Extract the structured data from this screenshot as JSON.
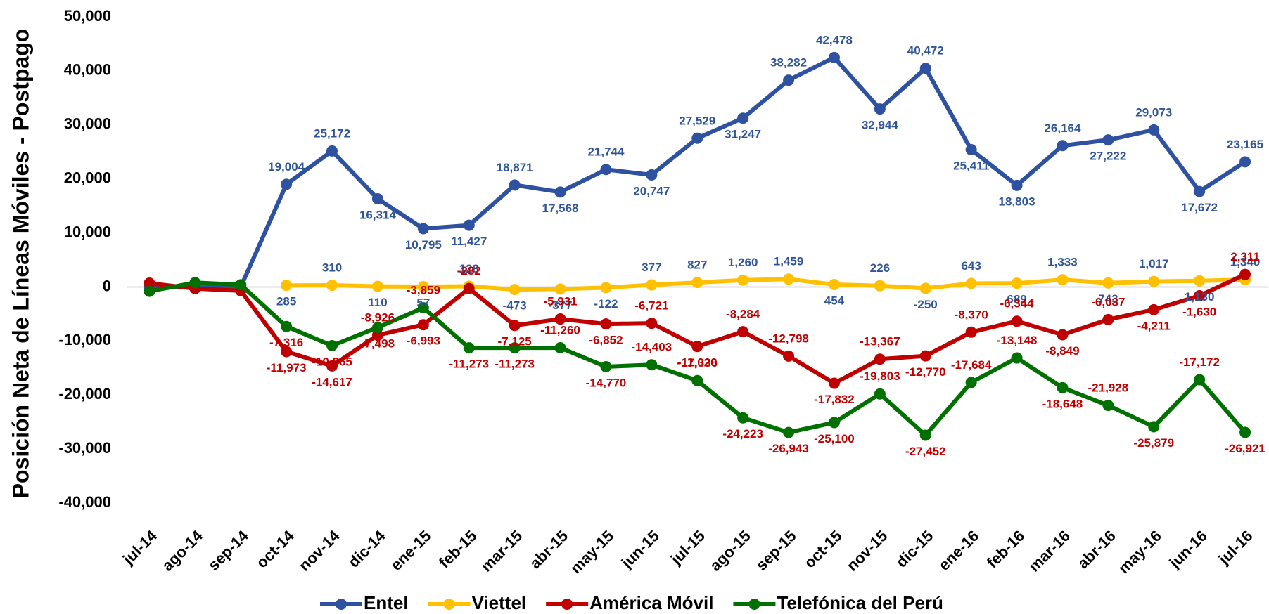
{
  "chart_data": {
    "type": "line",
    "y_label": "Posición Neta de Líneas Móviles - Postpago",
    "categories": [
      "jul-14",
      "ago-14",
      "sep-14",
      "oct-14",
      "nov-14",
      "dic-14",
      "ene-15",
      "feb-15",
      "mar-15",
      "abr-15",
      "may-15",
      "jun-15",
      "jul-15",
      "ago-15",
      "sep-15",
      "oct-15",
      "nov-15",
      "dic-15",
      "ene-16",
      "feb-16",
      "mar-16",
      "abr-16",
      "may-16",
      "jun-16",
      "jul-16"
    ],
    "ylim": [
      -40000,
      50000
    ],
    "yticks": [
      {
        "value": -40000,
        "label": "-40,000"
      },
      {
        "value": -30000,
        "label": "-30,000"
      },
      {
        "value": -20000,
        "label": "-20,000"
      },
      {
        "value": -10000,
        "label": "-10,000"
      },
      0,
      {
        "value": 10000,
        "label": "10,000"
      },
      {
        "value": 20000,
        "label": "20,000"
      },
      {
        "value": 30000,
        "label": "30,000"
      },
      {
        "value": 40000,
        "label": "40,000"
      },
      {
        "value": 50000,
        "label": "50,000"
      }
    ],
    "series": [
      {
        "name": "Entel",
        "color": "#2f52a0",
        "label_color": "#2f5597",
        "values": [
          0,
          0,
          0,
          19004,
          25172,
          16314,
          10795,
          11427,
          18871,
          17568,
          21744,
          20747,
          27529,
          31247,
          38282,
          42478,
          32944,
          40472,
          25411,
          18803,
          26164,
          27222,
          29073,
          17672,
          23165
        ],
        "value_labels": [
          null,
          null,
          null,
          "19,004",
          "25,172",
          "16,314",
          "10,795",
          "11,427",
          "18,871",
          "17,568",
          "21,744",
          "20,747",
          "27,529",
          "31,247",
          "38,282",
          "42,478",
          "32,944",
          "40,472",
          "25,411",
          "18,803",
          "26,164",
          "27,222",
          "29,073",
          "17,672",
          "23,165"
        ]
      },
      {
        "name": "Viettel",
        "color": "#ffc000",
        "label_color": "#2f5597",
        "values": [
          null,
          null,
          null,
          285,
          310,
          110,
          57,
          128,
          -473,
          -377,
          -122,
          377,
          827,
          1260,
          1459,
          454,
          226,
          -250,
          643,
          689,
          1333,
          743,
          1017,
          1130,
          1340
        ],
        "value_labels": [
          null,
          null,
          null,
          "285",
          "310",
          "110",
          "57",
          "128",
          "-473",
          "-377",
          "-122",
          "377",
          "827",
          "1,260",
          "1,459",
          "454",
          "226",
          "-250",
          "643",
          "689",
          "1,333",
          "743",
          "1,017",
          "1,130",
          "1,340"
        ]
      },
      {
        "name": "América Móvil",
        "color": "#c00000",
        "label_color": "#c00000",
        "values": [
          700,
          -300,
          -700,
          -11973,
          -14617,
          -8926,
          -6993,
          -282,
          -7125,
          -5931,
          -6852,
          -6721,
          -11020,
          -8284,
          -12798,
          -17832,
          -13367,
          -12770,
          -8370,
          -6344,
          -8849,
          -6037,
          -4211,
          -1630,
          2311
        ],
        "value_labels": [
          null,
          null,
          null,
          "-11,973",
          "-14,617",
          "-8,926",
          "-6,993",
          "-282",
          "-7,125",
          "-5,931",
          "-6,852",
          "-6,721",
          "-11,020",
          "-8,284",
          "-12,798",
          "-17,832",
          "-13,367",
          "-12,770",
          "-8,370",
          "-6,344",
          "-8,849",
          "-6,037",
          "-4,211",
          "-1,630",
          "2,311"
        ]
      },
      {
        "name": "Telefónica del Perú",
        "color": "#007000",
        "label_color": "#c00000",
        "values": [
          -800,
          800,
          400,
          -7316,
          -10865,
          -7498,
          -3859,
          -11273,
          -11273,
          -11260,
          -14770,
          -14403,
          -17336,
          -24223,
          -26943,
          -25100,
          -19803,
          -27452,
          -17684,
          -13148,
          -18648,
          -21928,
          -25879,
          -17172,
          -26921
        ],
        "value_labels": [
          null,
          null,
          null,
          "-7,316",
          "-10,865",
          "-7,498",
          "-3,859",
          "-11,273",
          "-11,273",
          "-11,260",
          "-14,770",
          "-14,403",
          "-17,336",
          "-24,223",
          "-26,943",
          "-25,100",
          "-19,803",
          "-27,452",
          "-17,684",
          "-13,148",
          "-18,648",
          "-21,928",
          "-25,879",
          "-17,172",
          "-26,921"
        ]
      }
    ]
  }
}
